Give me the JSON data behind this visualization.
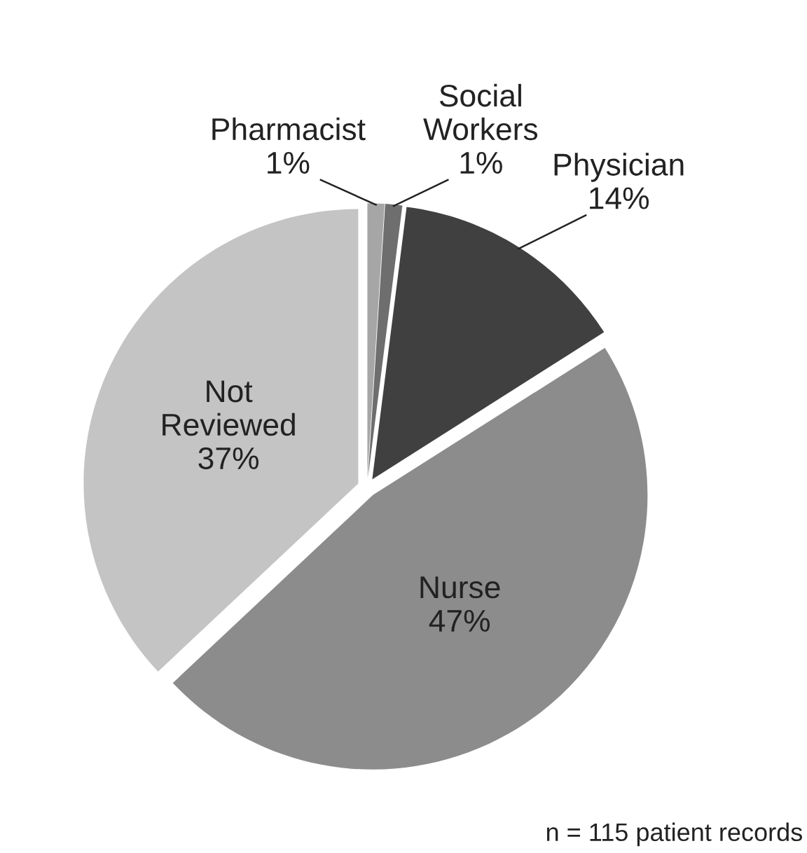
{
  "chart_data": {
    "type": "pie",
    "categories": [
      "Pharmacist",
      "Social Workers",
      "Physician",
      "Nurse",
      "Not Reviewed"
    ],
    "values": [
      1,
      1,
      14,
      47,
      37
    ],
    "value_labels": [
      "1%",
      "1%",
      "14%",
      "47%",
      "37%"
    ],
    "colors": [
      "#a6a6a6",
      "#6e6e6e",
      "#404040",
      "#8c8c8c",
      "#c4c4c4"
    ],
    "annotations": [
      "n = 115 patient records"
    ]
  }
}
